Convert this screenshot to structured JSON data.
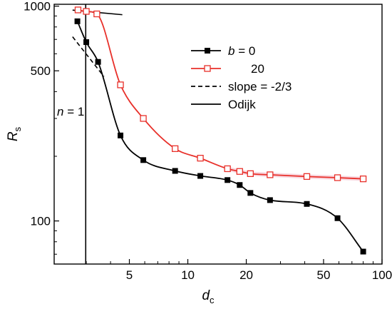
{
  "chart_data": {
    "type": "line",
    "xlabel": "d",
    "xlabel_sub": "c",
    "ylabel": "R",
    "ylabel_sub": "s",
    "xscale": "log",
    "yscale": "log",
    "xlim": [
      2.05,
      100
    ],
    "ylim": [
      63,
      1020
    ],
    "x_ticks": [
      5,
      10,
      20,
      50,
      100
    ],
    "x_tick_labels": [
      "5",
      "10",
      "20",
      "50",
      "100"
    ],
    "y_ticks": [
      100,
      500,
      1000
    ],
    "y_tick_labels": [
      "100",
      "500",
      "1000"
    ],
    "grid": false,
    "legend_position": "top-right",
    "series": [
      {
        "name": "20",
        "legend_prefix": "",
        "color": "#e8302a",
        "marker": "open-square",
        "x": [
          2.72,
          3.0,
          3.4,
          4.5,
          5.9,
          8.6,
          11.6,
          16.0,
          18.5,
          21.0,
          26.5,
          41.0,
          59.0,
          80.0
        ],
        "y": [
          960,
          945,
          920,
          430,
          300,
          217,
          196,
          175,
          170,
          166,
          164,
          161,
          159,
          157
        ]
      },
      {
        "name": "0",
        "legend_prefix": "b",
        "color": "#000000",
        "marker": "filled-square",
        "x": [
          2.7,
          3.0,
          3.45,
          4.5,
          5.9,
          8.6,
          11.6,
          16.0,
          18.5,
          21.0,
          26.5,
          41.0,
          59.0,
          80.0
        ],
        "y": [
          850,
          680,
          550,
          250,
          192,
          171,
          162,
          155,
          147,
          135,
          125,
          120,
          103,
          72
        ]
      }
    ],
    "reference_lines": [
      {
        "name": "slope = -2/3",
        "style": "dashed",
        "x": [
          2.55,
          3.7
        ],
        "y": [
          720,
          470
        ]
      },
      {
        "name": "Odijk",
        "style": "solid",
        "x": [
          2.55,
          4.6
        ],
        "y": [
          958,
          912
        ]
      },
      {
        "name": "n = 1",
        "style": "solid-vertical",
        "x": [
          2.98,
          2.98
        ],
        "y": [
          63,
          1020
        ]
      }
    ],
    "annotations": [
      {
        "text": "n = 1",
        "var": "n",
        "rest": " = 1"
      }
    ],
    "legend": [
      {
        "label_prefix": "b",
        "label_rest": " = 0",
        "color": "#000000",
        "marker": "filled-square",
        "line": "solid"
      },
      {
        "label_prefix": "",
        "label_rest": "20",
        "color": "#e8302a",
        "marker": "open-square",
        "line": "solid"
      },
      {
        "label_prefix": "",
        "label_rest": "slope = -2/3",
        "color": "#000000",
        "marker": "",
        "line": "dashed"
      },
      {
        "label_prefix": "",
        "label_rest": "Odijk",
        "color": "#000000",
        "marker": "",
        "line": "solid"
      }
    ]
  }
}
